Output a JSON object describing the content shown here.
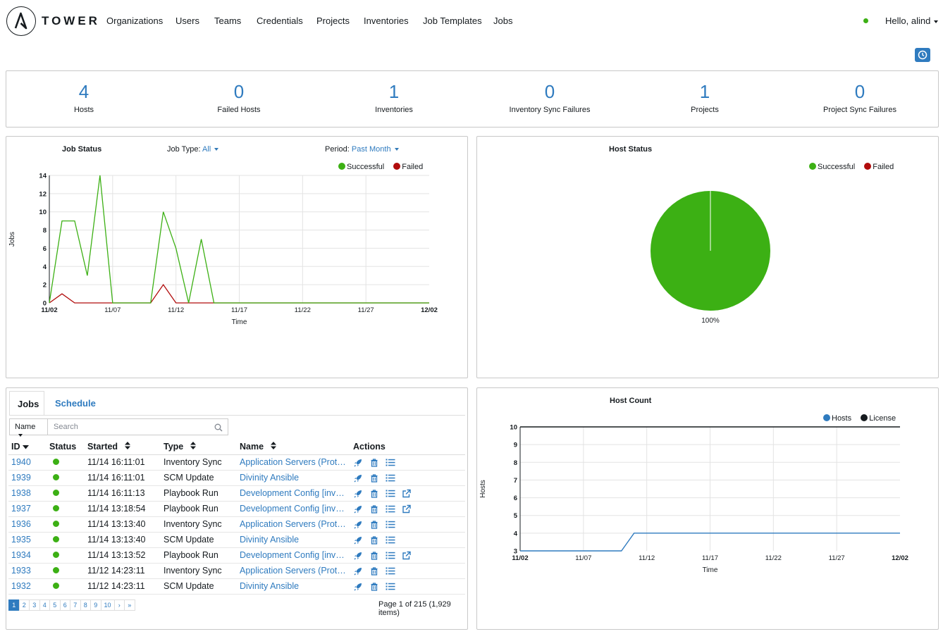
{
  "nav": {
    "brand": "TOWER",
    "items": [
      "Organizations",
      "Users",
      "Teams",
      "Credentials",
      "Projects",
      "Inventories",
      "Job Templates",
      "Jobs"
    ],
    "user": "Hello, alind"
  },
  "counts": [
    {
      "value": "4",
      "label": "Hosts"
    },
    {
      "value": "0",
      "label": "Failed Hosts"
    },
    {
      "value": "1",
      "label": "Inventories"
    },
    {
      "value": "0",
      "label": "Inventory Sync Failures"
    },
    {
      "value": "1",
      "label": "Projects"
    },
    {
      "value": "0",
      "label": "Project Sync Failures"
    }
  ],
  "job_status_panel": {
    "title": "Job Status",
    "job_type_label": "Job Type:",
    "job_type_value": "All",
    "period_label": "Period:",
    "period_value": "Past Month",
    "legend_success": "Successful",
    "legend_failed": "Failed"
  },
  "host_status_panel": {
    "title": "Host Status",
    "legend_success": "Successful",
    "legend_failed": "Failed"
  },
  "host_count_panel": {
    "title": "Host Count",
    "legend_hosts": "Hosts",
    "legend_license": "License"
  },
  "colors": {
    "accent": "#2f7bbf",
    "success": "#3cb014",
    "failed": "#b10c0c",
    "license": "#161b1f"
  },
  "chart_data": [
    {
      "type": "line",
      "title": "Job Status",
      "xlabel": "Time",
      "ylabel": "Jobs",
      "x_ticks": [
        "11/02",
        "11/07",
        "11/12",
        "11/17",
        "11/22",
        "11/27",
        "12/02"
      ],
      "y_ticks": [
        0,
        2,
        4,
        6,
        8,
        10,
        12,
        14
      ],
      "ylim": [
        0,
        14
      ],
      "x_days": 30,
      "series": [
        {
          "name": "Successful",
          "color": "#3cb014",
          "x": [
            0,
            1,
            2,
            3,
            4,
            5,
            6,
            7,
            8,
            9,
            10,
            11,
            12,
            13,
            30
          ],
          "y": [
            0,
            9,
            9,
            3,
            14,
            0,
            0,
            0,
            0,
            10,
            6,
            0,
            7,
            0,
            0
          ]
        },
        {
          "name": "Failed",
          "color": "#b10c0c",
          "x": [
            0,
            1,
            2,
            3,
            4,
            5,
            6,
            7,
            8,
            9,
            10,
            11,
            12,
            13,
            30
          ],
          "y": [
            0,
            1,
            0,
            0,
            0,
            0,
            0,
            0,
            0,
            2,
            0,
            0,
            0,
            0,
            0
          ]
        }
      ]
    },
    {
      "type": "pie",
      "title": "Host Status",
      "slices": [
        {
          "name": "Successful",
          "value": 100,
          "color": "#3cb014"
        },
        {
          "name": "Failed",
          "value": 0,
          "color": "#b10c0c"
        }
      ],
      "slice_label": "100%"
    },
    {
      "type": "line",
      "title": "Host Count",
      "xlabel": "Time",
      "ylabel": "Hosts",
      "x_ticks": [
        "11/02",
        "11/07",
        "11/12",
        "11/17",
        "11/22",
        "11/27",
        "12/02"
      ],
      "y_ticks": [
        3,
        4,
        5,
        6,
        7,
        8,
        9,
        10
      ],
      "ylim": [
        3,
        10
      ],
      "x_days": 30,
      "series": [
        {
          "name": "Hosts",
          "color": "#2f7bbf",
          "x": [
            0,
            8,
            9,
            30
          ],
          "y": [
            3,
            3,
            4,
            4
          ]
        },
        {
          "name": "License",
          "color": "#161b1f",
          "x": [
            0,
            30
          ],
          "y": [
            10,
            10
          ]
        }
      ]
    }
  ],
  "jobs_panel": {
    "tabs": [
      "Jobs",
      "Schedule"
    ],
    "filter_field": "Name",
    "search_placeholder": "Search",
    "columns": [
      "ID",
      "Status",
      "Started",
      "Type",
      "Name",
      "Actions"
    ],
    "rows": [
      {
        "id": "1940",
        "started": "11/14 16:11:01",
        "type": "Inventory Sync",
        "name": "Application Servers (Prototype)",
        "ext": false
      },
      {
        "id": "1939",
        "started": "11/14 16:11:01",
        "type": "SCM Update",
        "name": "Divinity Ansible",
        "ext": false
      },
      {
        "id": "1938",
        "started": "11/14 16:11:13",
        "type": "Playbook Run",
        "name": "Development Config [invoked]",
        "ext": true
      },
      {
        "id": "1937",
        "started": "11/14 13:18:54",
        "type": "Playbook Run",
        "name": "Development Config [invoked]",
        "ext": true
      },
      {
        "id": "1936",
        "started": "11/14 13:13:40",
        "type": "Inventory Sync",
        "name": "Application Servers (Prototype)",
        "ext": false
      },
      {
        "id": "1935",
        "started": "11/14 13:13:40",
        "type": "SCM Update",
        "name": "Divinity Ansible",
        "ext": false
      },
      {
        "id": "1934",
        "started": "11/14 13:13:52",
        "type": "Playbook Run",
        "name": "Development Config [invoked]",
        "ext": true
      },
      {
        "id": "1933",
        "started": "11/12 14:23:11",
        "type": "Inventory Sync",
        "name": "Application Servers (Prototype)",
        "ext": false
      },
      {
        "id": "1932",
        "started": "11/12 14:23:11",
        "type": "SCM Update",
        "name": "Divinity Ansible",
        "ext": false
      }
    ],
    "pages": [
      "1",
      "2",
      "3",
      "4",
      "5",
      "6",
      "7",
      "8",
      "9",
      "10",
      "›",
      "»"
    ],
    "page_info": "Page 1 of 215 (1,929 items)"
  }
}
